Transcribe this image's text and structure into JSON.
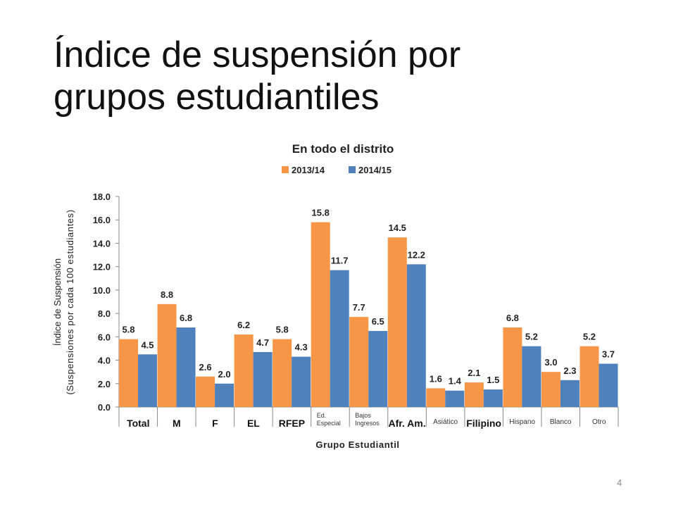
{
  "slide": {
    "title_line1": "Índice de suspensión por",
    "title_line2": "grupos estudiantiles",
    "page_number": "4"
  },
  "chart_data": {
    "type": "bar",
    "title": "En todo el distrito",
    "xlabel": "Grupo Estudiantil",
    "ylabel_line1": "Índice de Suspensión",
    "ylabel_line2": "(Suspensiones por cada 100 estudiantes)",
    "ylim": [
      0,
      18
    ],
    "yticks": [
      "0.0",
      "2.0",
      "4.0",
      "6.0",
      "8.0",
      "10.0",
      "12.0",
      "14.0",
      "16.0",
      "18.0"
    ],
    "grid": false,
    "legend_position": "top",
    "categories": [
      "Total",
      "M",
      "F",
      "EL",
      "RFEP",
      "Ed. Especial",
      "Bajos Ingresos",
      "Afr. Am.",
      "Asiático",
      "Filipino",
      "Hispano",
      "Blanco",
      "Otro"
    ],
    "series": [
      {
        "name": "2013/14",
        "color": "#F79646",
        "values": [
          5.8,
          8.8,
          2.6,
          6.2,
          5.8,
          15.8,
          7.7,
          14.5,
          1.6,
          2.1,
          6.8,
          3.0,
          5.2
        ]
      },
      {
        "name": "2014/15",
        "color": "#4F81BD",
        "values": [
          4.5,
          6.8,
          2.0,
          4.7,
          4.3,
          11.7,
          6.5,
          12.2,
          1.4,
          1.5,
          5.2,
          2.3,
          3.7
        ]
      }
    ],
    "data_labels": [
      [
        "5.8",
        "8.8",
        "2.6",
        "6.2",
        "5.8",
        "15.8",
        "7.7",
        "14.5",
        "1.6",
        "2.1",
        "6.8",
        "3.0",
        "5.2"
      ],
      [
        "4.5",
        "6.8",
        "2.0",
        "4.7",
        "4.3",
        "11.7",
        "6.5",
        "12.2",
        "1.4",
        "1.5",
        "5.2",
        "2.3",
        "3.7"
      ]
    ]
  }
}
